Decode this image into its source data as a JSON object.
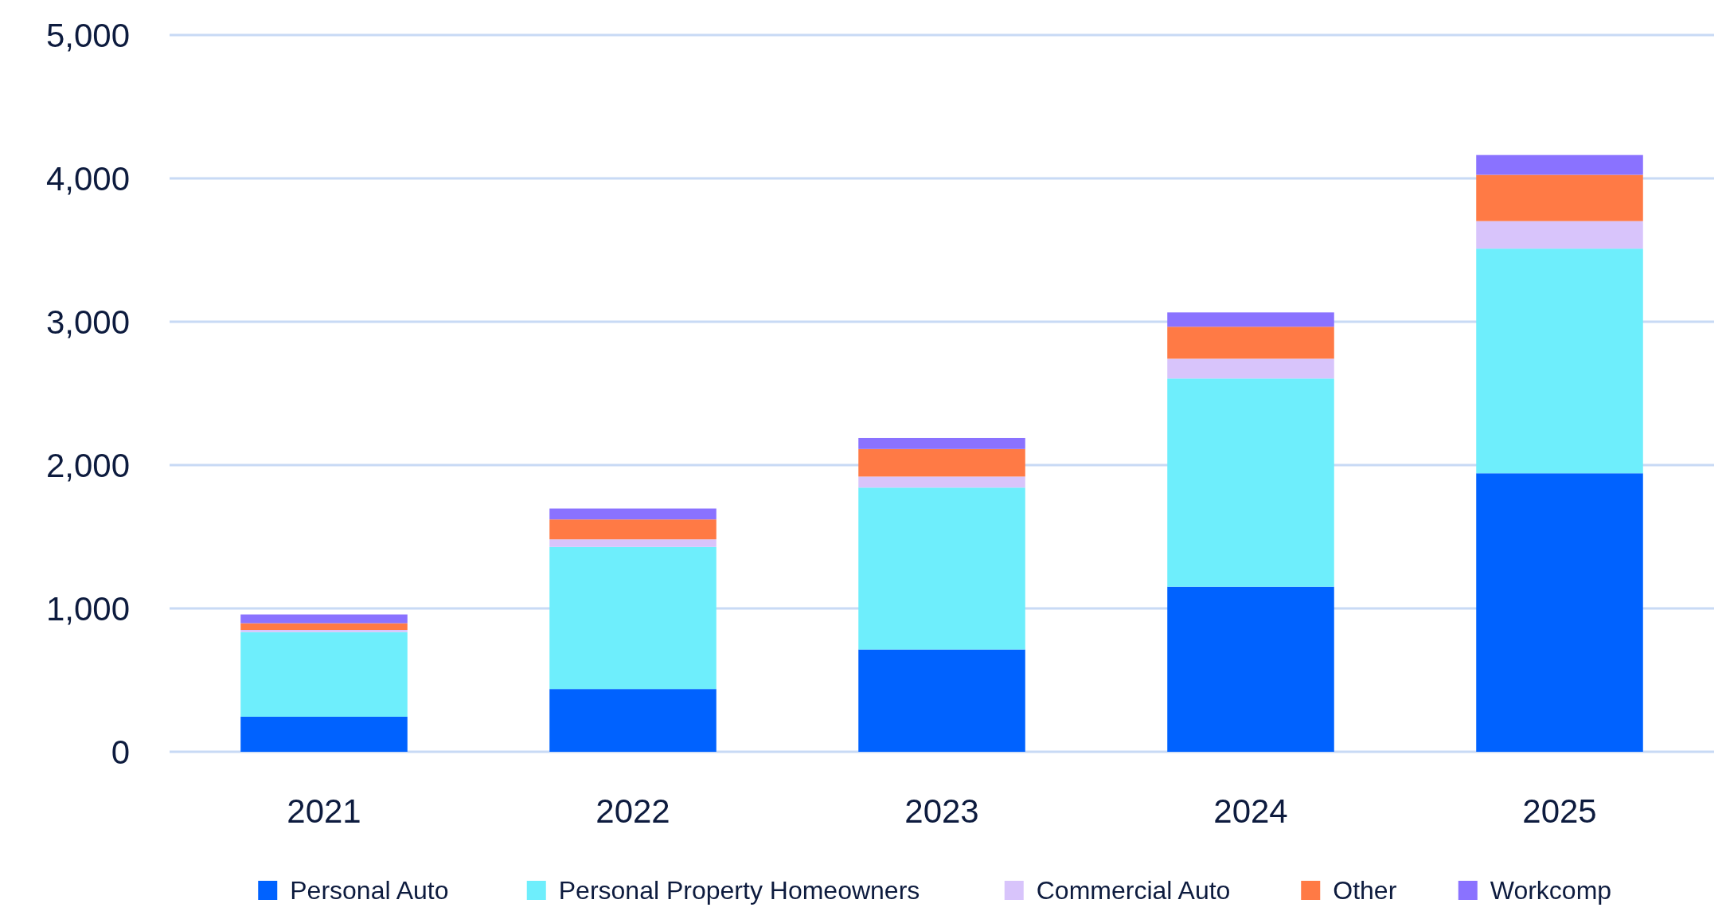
{
  "chart_data": {
    "type": "bar",
    "stacked": true,
    "categories": [
      "2021",
      "2022",
      "2023",
      "2024",
      "2025"
    ],
    "series": [
      {
        "name": "Personal Auto",
        "color": "#0062ff",
        "values": [
          245,
          438,
          714,
          1152,
          1943
        ]
      },
      {
        "name": "Personal Property Homeowners",
        "color": "#6eeefc",
        "values": [
          590,
          991,
          1129,
          1452,
          1567
        ]
      },
      {
        "name": "Commercial Auto",
        "color": "#d8c4fb",
        "values": [
          15,
          53,
          77,
          138,
          192
        ]
      },
      {
        "name": "Other",
        "color": "#ff7a45",
        "values": [
          47,
          139,
          192,
          223,
          323
        ]
      },
      {
        "name": "Workcomp",
        "color": "#8a72ff",
        "values": [
          61,
          76,
          77,
          100,
          138
        ]
      }
    ],
    "ylim": [
      0,
      5000
    ],
    "yticks": [
      {
        "value": 0,
        "label": "0"
      },
      {
        "value": 1000,
        "label": "1,000"
      },
      {
        "value": 2000,
        "label": "2,000"
      },
      {
        "value": 3000,
        "label": "3,000"
      },
      {
        "value": 4000,
        "label": "4,000"
      },
      {
        "value": 5000,
        "label": "5,000"
      }
    ],
    "grid": "y",
    "legend": "bottom"
  }
}
